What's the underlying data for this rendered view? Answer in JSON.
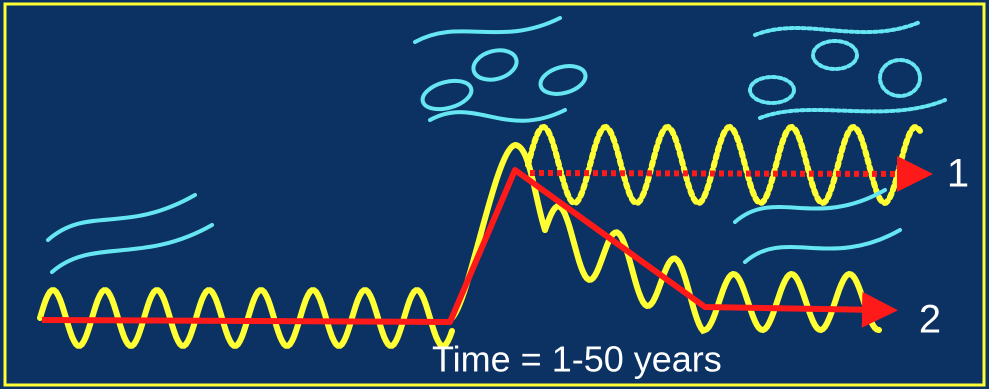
{
  "labels": {
    "outcome_1": "1",
    "outcome_2": "2",
    "time_axis": "Time = 1-50 years"
  }
}
